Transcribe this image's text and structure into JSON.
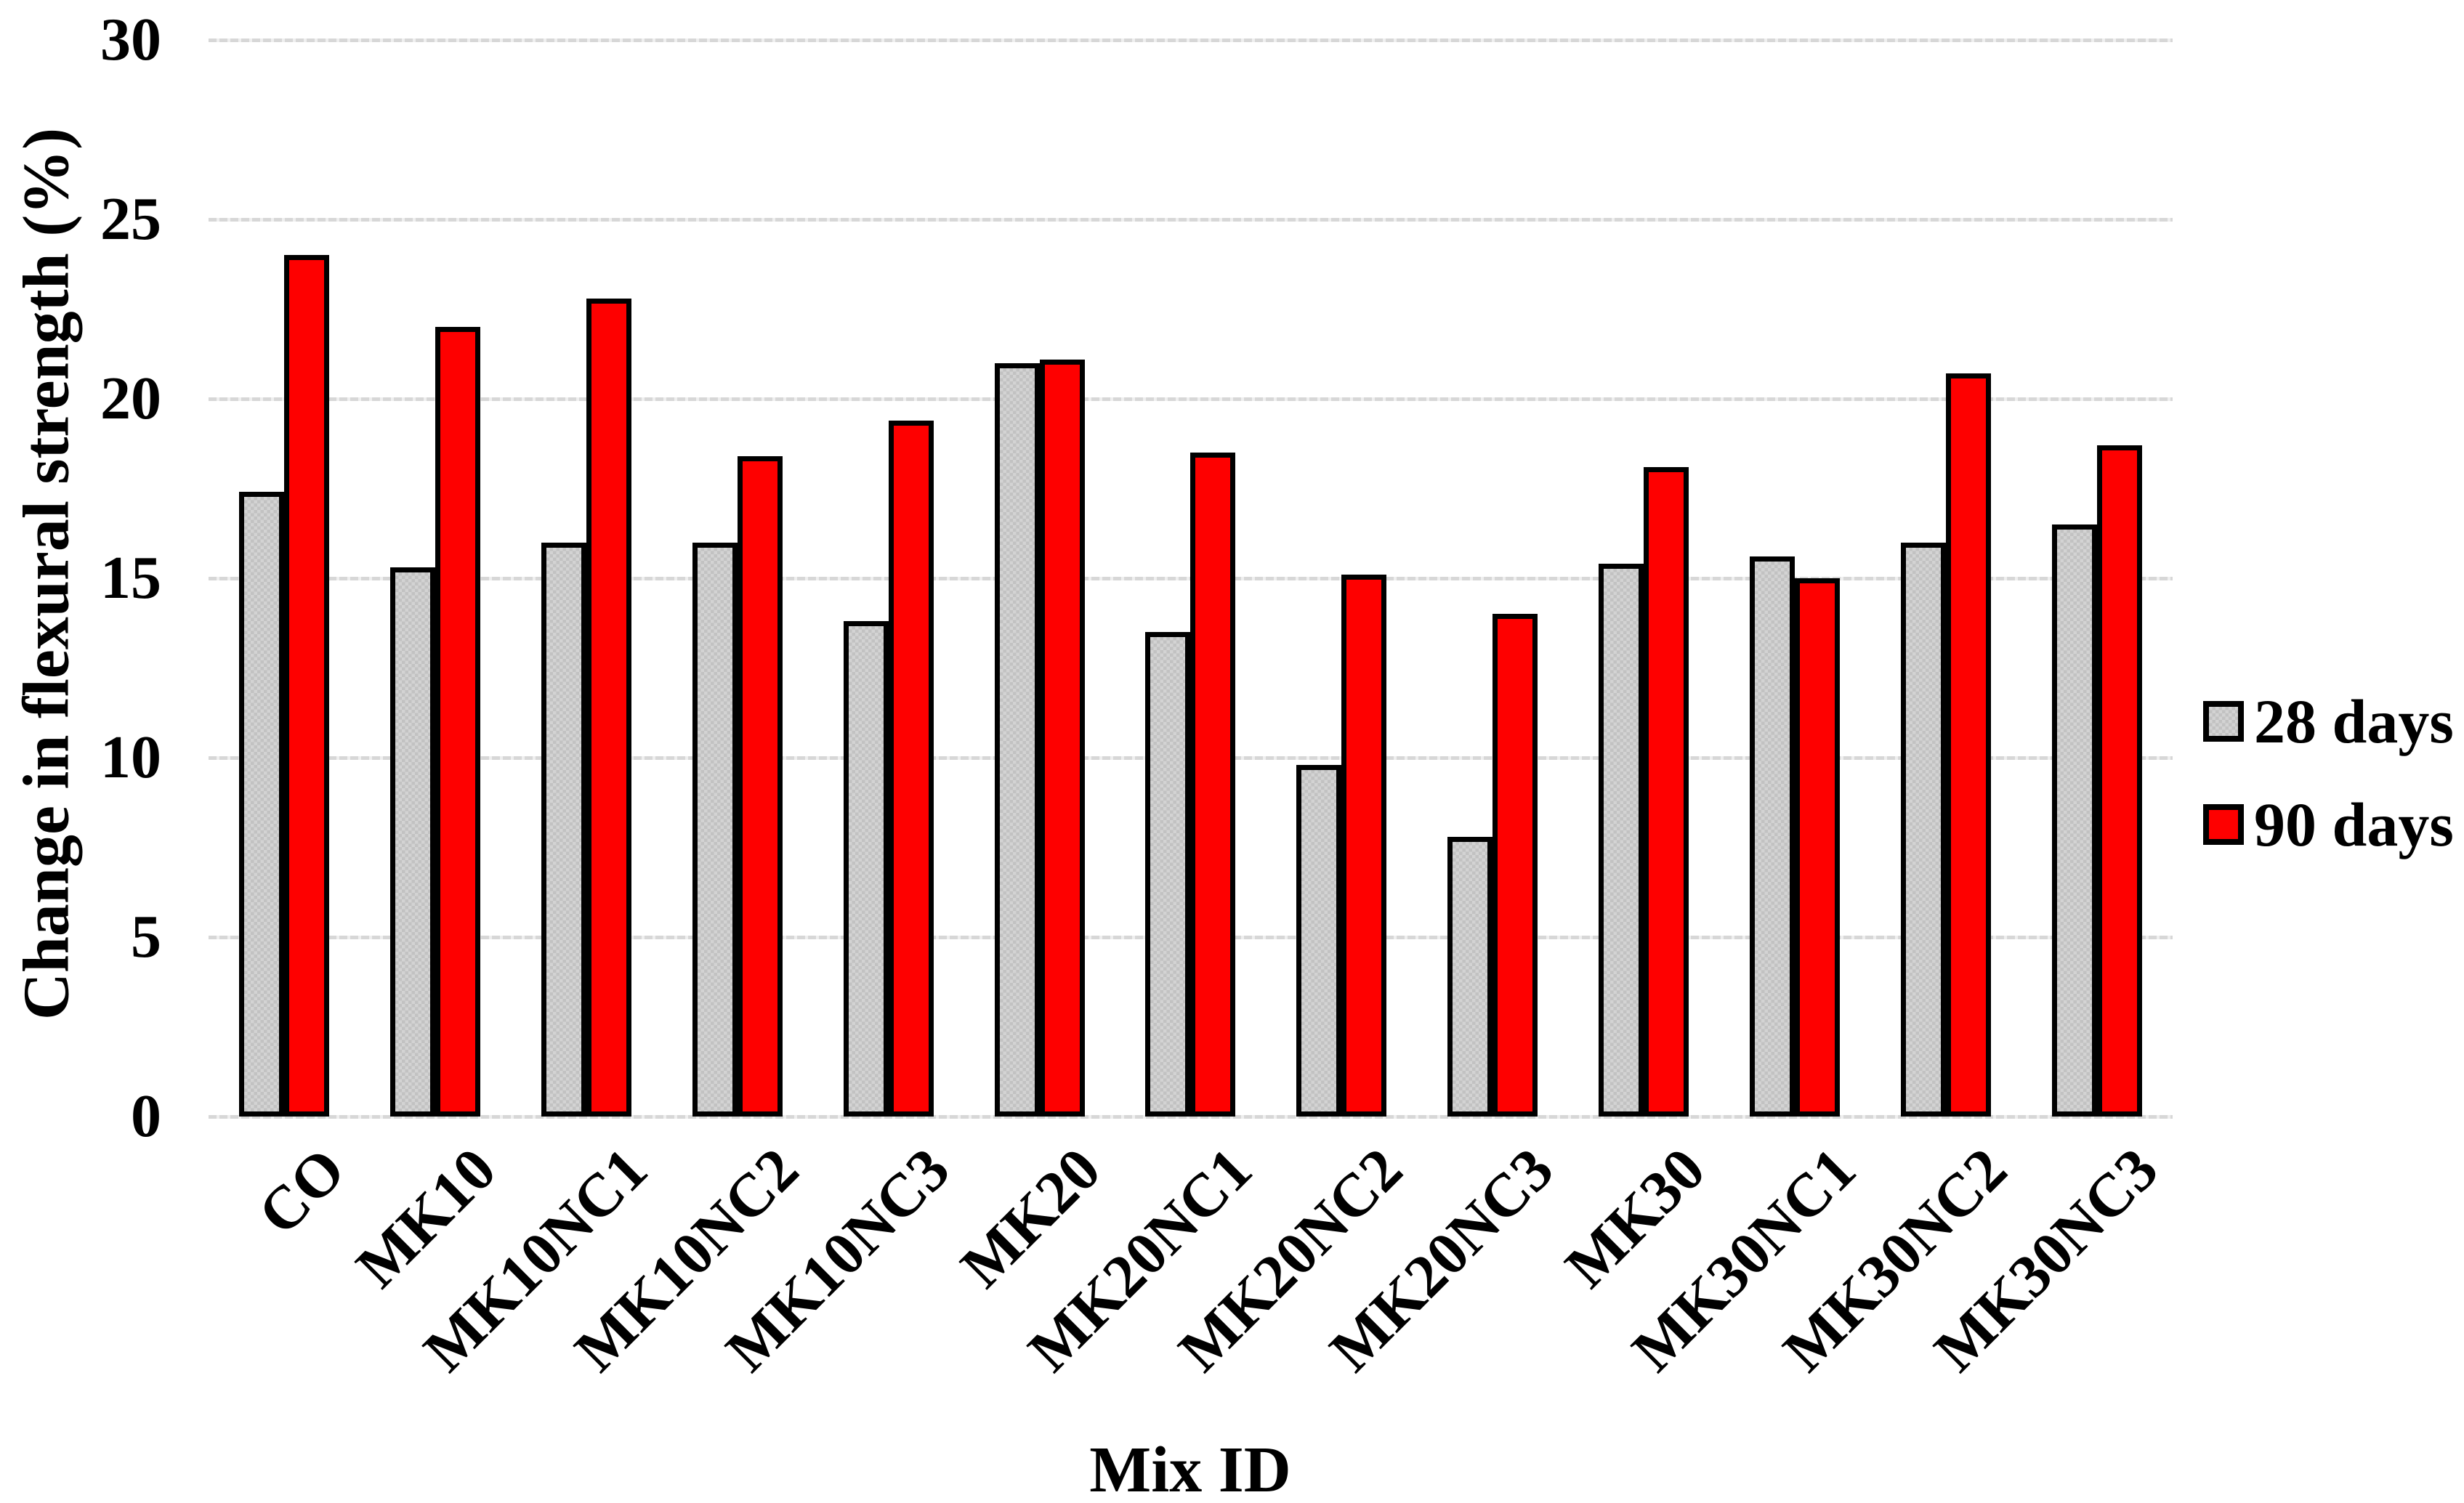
{
  "chart_data": {
    "type": "bar",
    "title": "",
    "xlabel": "Mix ID",
    "ylabel": "Change in flexural strength (%)",
    "ylim": [
      0,
      30
    ],
    "yticks": [
      0,
      5,
      10,
      15,
      20,
      25,
      30
    ],
    "grid": true,
    "legend_position": "right",
    "categories": [
      "CO",
      "MK10",
      "MK10NC1",
      "MK10NC2",
      "MK10NC3",
      "MK20",
      "MK20NC1",
      "MK20NC2",
      "MK20NC3",
      "MK30",
      "MK30NC1",
      "MK30NC2",
      "MK30NC3"
    ],
    "series": [
      {
        "name": "28 days",
        "color": "#c9c9c9",
        "pattern": "checker",
        "values": [
          17.4,
          15.3,
          16.0,
          16.0,
          13.8,
          21.0,
          13.5,
          9.8,
          7.8,
          15.4,
          15.6,
          16.0,
          16.5
        ]
      },
      {
        "name": "90 days",
        "color": "#fe0000",
        "pattern": "solid",
        "values": [
          24.0,
          22.0,
          22.8,
          18.4,
          19.4,
          21.1,
          18.5,
          15.1,
          14.0,
          18.1,
          15.0,
          20.7,
          18.7
        ]
      }
    ]
  },
  "colors": {
    "background": "#ffffff",
    "bar_outline": "#000000",
    "gridline": "#d9d9d9",
    "text": "#000000"
  }
}
